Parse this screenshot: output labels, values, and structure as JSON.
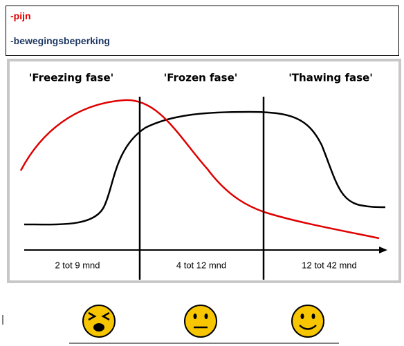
{
  "legend": [
    {
      "marker": "-",
      "label": "pijn"
    },
    {
      "marker": "-",
      "label": "bewegingsbeperking"
    }
  ],
  "phases": [
    {
      "title": "'Freezing fase'",
      "duration": "2 tot 9 mnd"
    },
    {
      "title": "'Frozen fase'",
      "duration": "4 tot 12 mnd"
    },
    {
      "title": "'Thawing fase'",
      "duration": "12 tot 42 mnd"
    }
  ]
}
